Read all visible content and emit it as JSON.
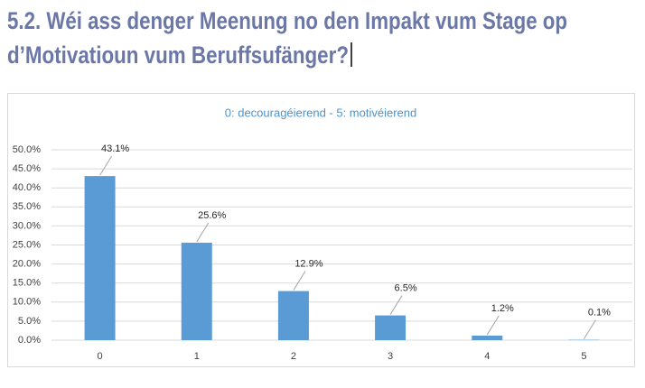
{
  "heading": [
    "5.2. Wéi ass denger Meenung no den Impakt vum Stage op",
    "d’Motivatioun vum Beruffsufänger?"
  ],
  "chart_data": {
    "type": "bar",
    "title": "0: decouragéierend - 5: motivéierend",
    "categories": [
      "0",
      "1",
      "2",
      "3",
      "4",
      "5"
    ],
    "values": [
      43.1,
      25.6,
      12.9,
      6.5,
      1.2,
      0.1
    ],
    "value_labels": [
      "43.1%",
      "25.6%",
      "12.9%",
      "6.5%",
      "1.2%",
      "0.1%"
    ],
    "color": "#5b9bd5",
    "ylim": [
      0,
      50
    ],
    "yticks": [
      {
        "value": 0,
        "label": "0.0%"
      },
      {
        "value": 5,
        "label": "5.0%"
      },
      {
        "value": 10,
        "label": "10.0%"
      },
      {
        "value": 15,
        "label": "15.0%"
      },
      {
        "value": 20,
        "label": "20.0%"
      },
      {
        "value": 25,
        "label": "25.0%"
      },
      {
        "value": 30,
        "label": "30.0%"
      },
      {
        "value": 35,
        "label": "35.0%"
      },
      {
        "value": 40,
        "label": "40.0%"
      },
      {
        "value": 45,
        "label": "45.0%"
      },
      {
        "value": 50,
        "label": "50.0%"
      }
    ],
    "grid": true
  }
}
